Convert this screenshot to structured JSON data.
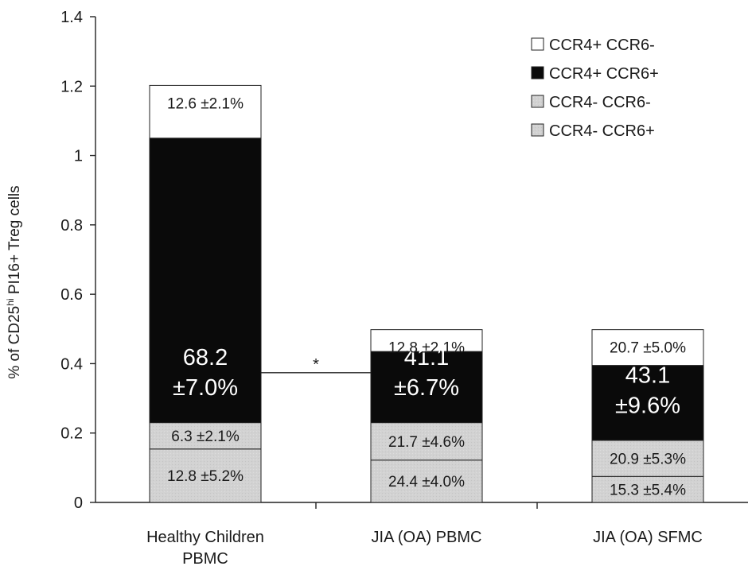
{
  "chart_data": {
    "type": "bar",
    "stacked": true,
    "title": "",
    "xlabel": "",
    "ylabel": {
      "prefix": "% of CD25",
      "superscript": "hi",
      "suffix": " PI16+ Treg cells"
    },
    "ylim": [
      0,
      1.4
    ],
    "yticks": [
      "0",
      "0.2",
      "0.4",
      "0.6",
      "0.8",
      "1",
      "1.2",
      "1.4"
    ],
    "grid": false,
    "legend_position": "top-right",
    "categories": [
      [
        "Healthy Children",
        "PBMC"
      ],
      [
        "JIA (OA) PBMC"
      ],
      [
        "JIA (OA) SFMC"
      ]
    ],
    "series": [
      {
        "name": "CCR4- CCR6+",
        "color": "#d2d2d2",
        "text_color": "#1a1a1a",
        "values": [
          0.154,
          0.122,
          0.075
        ],
        "labels": [
          [
            "12.8 ±5.2%"
          ],
          [
            "24.4 ±4.0%"
          ],
          [
            "15.3 ±5.4%"
          ]
        ]
      },
      {
        "name": "CCR4- CCR6-",
        "color": "#d2d2d2",
        "text_color": "#1a1a1a",
        "values": [
          0.076,
          0.108,
          0.104
        ],
        "labels": [
          [
            "6.3 ±2.1%"
          ],
          [
            "21.7 ±4.6%"
          ],
          [
            "20.9 ±5.3%"
          ]
        ]
      },
      {
        "name": "CCR4+ CCR6+",
        "color": "#0a0a0a",
        "text_color": "#ffffff",
        "values": [
          0.82,
          0.205,
          0.216
        ],
        "labels": [
          [
            "68.2",
            "±7.0%"
          ],
          [
            "41.1",
            "±6.7%"
          ],
          [
            "43.1",
            "±9.6%"
          ]
        ]
      },
      {
        "name": "CCR4+ CCR6-",
        "color": "#ffffff",
        "text_color": "#1a1a1a",
        "values": [
          0.152,
          0.063,
          0.103
        ],
        "labels": [
          [
            "12.6 ±2.1%"
          ],
          [
            "12.8 ±2.1%"
          ],
          [
            "20.7 ±5.0%"
          ]
        ]
      }
    ],
    "legend_order": [
      "CCR4+ CCR6-",
      "CCR4+ CCR6+",
      "CCR4- CCR6-",
      "CCR4- CCR6+"
    ],
    "annotations": [
      {
        "text": "*",
        "from_category": 0,
        "to_category": 1,
        "y": 0.374
      }
    ]
  }
}
